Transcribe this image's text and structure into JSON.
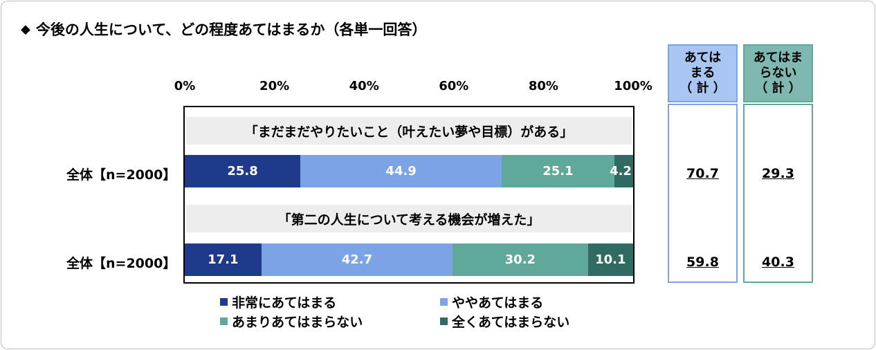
{
  "title": "今後の人生について、どの程度あてはまるか（各単一回答）",
  "chart_data": {
    "type": "bar",
    "orientation": "horizontal-stacked-100",
    "xlim": [
      0,
      100
    ],
    "tick_labels": [
      "0%",
      "20%",
      "40%",
      "60%",
      "80%",
      "100%"
    ],
    "colors": [
      "#1f3a8a",
      "#7ca3e6",
      "#5fa89a",
      "#2f6b60"
    ],
    "legend": [
      "非常にあてはまる",
      "ややあてはまる",
      "あまりあてはまらない",
      "全くあてはまらない"
    ],
    "questions": [
      {
        "label": "「まだまだやりたいこと（叶えたい夢や目標）がある」",
        "row_label": "全体【n=2000】",
        "values": [
          25.8,
          44.9,
          25.1,
          4.2
        ],
        "value_labels": [
          "25.8",
          "44.9",
          "25.1",
          "4.2"
        ]
      },
      {
        "label": "「第二の人生について考える機会が増えた」",
        "row_label": "全体【n=2000】",
        "values": [
          17.1,
          42.7,
          30.2,
          10.1
        ],
        "value_labels": [
          "17.1",
          "42.7",
          "30.2",
          "10.1"
        ]
      }
    ],
    "summary": {
      "apply": {
        "header": [
          "あては",
          "まる",
          "（ 計 ）"
        ],
        "values": [
          "70.7",
          "59.8"
        ],
        "border": "#7ca3e6",
        "bg": "#a9c6f2"
      },
      "not_apply": {
        "header": [
          "あてはま",
          "らない",
          "（ 計 ）"
        ],
        "values": [
          "29.3",
          "40.3"
        ],
        "border": "#5fa89a",
        "bg": "#7fb8b0"
      }
    }
  }
}
